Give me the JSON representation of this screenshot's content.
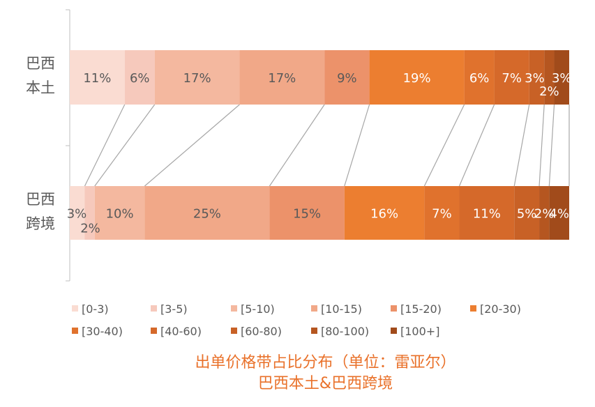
{
  "chart_data": {
    "type": "bar",
    "orientation": "horizontal",
    "stacked": "100%",
    "title": "出单价格带占比分布（单位：雷亚尔）",
    "subtitle": "巴西本土&巴西跨境",
    "categories": [
      {
        "line1": "巴西",
        "line2": "本土"
      },
      {
        "line1": "巴西",
        "line2": "跨境"
      }
    ],
    "series": [
      {
        "name": "[0-3)",
        "color": "#fadcd2",
        "values": [
          11,
          3
        ]
      },
      {
        "name": "[3-5)",
        "color": "#f6c9bc",
        "values": [
          6,
          2
        ]
      },
      {
        "name": "[5-10)",
        "color": "#f4b89f",
        "values": [
          17,
          10
        ]
      },
      {
        "name": "[10-15)",
        "color": "#f1a888",
        "values": [
          17,
          25
        ]
      },
      {
        "name": "[15-20)",
        "color": "#ec926a",
        "values": [
          9,
          15
        ]
      },
      {
        "name": "[20-30)",
        "color": "#ec7e30",
        "values": [
          19,
          16
        ]
      },
      {
        "name": "[30-40)",
        "color": "#e0722d",
        "values": [
          6,
          7
        ]
      },
      {
        "name": "[40-60)",
        "color": "#d5692a",
        "values": [
          7,
          11
        ]
      },
      {
        "name": "[60-80)",
        "color": "#c86126",
        "values": [
          3,
          5
        ]
      },
      {
        "name": "[80-100)",
        "color": "#b55620",
        "values": [
          2,
          2
        ]
      },
      {
        "name": "[100+]",
        "color": "#a14b1b",
        "values": [
          3,
          4
        ]
      }
    ],
    "labels": [
      [
        "11%",
        "6%",
        "17%",
        "17%",
        "9%",
        "19%",
        "6%",
        "7%",
        "3%",
        "2%",
        "3%"
      ],
      [
        "3%",
        "2%",
        "10%",
        "25%",
        "15%",
        "16%",
        "7%",
        "11%",
        "5%",
        "2%",
        "4%"
      ]
    ],
    "series_lines": true,
    "legend_position": "bottom",
    "grid": false
  }
}
